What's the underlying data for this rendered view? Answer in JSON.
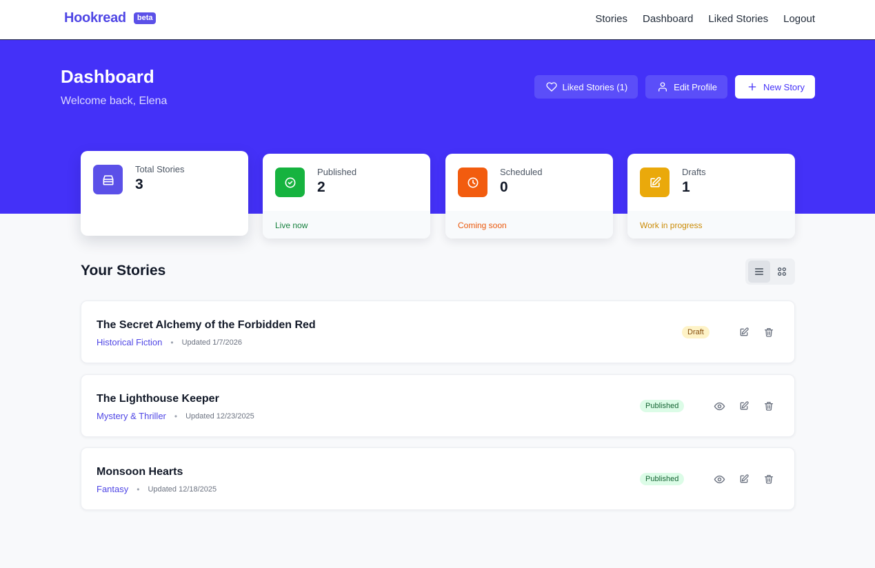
{
  "nav": {
    "brand": "Hookread",
    "beta": "beta",
    "links": [
      "Stories",
      "Dashboard",
      "Liked Stories",
      "Logout"
    ]
  },
  "hero": {
    "title": "Dashboard",
    "subtitle": "Welcome back, Elena",
    "liked_button": "Liked Stories (1)",
    "edit_button": "Edit Profile",
    "new_button": "New Story"
  },
  "stats": [
    {
      "label": "Total Stories",
      "value": "3",
      "footer": "",
      "icon": "inbox-icon",
      "color": "#5b50e8"
    },
    {
      "label": "Published",
      "value": "2",
      "footer": "Live now",
      "icon": "check-circle-icon",
      "color": "#16a34a"
    },
    {
      "label": "Scheduled",
      "value": "0",
      "footer": "Coming soon",
      "icon": "clock-icon",
      "color": "#ea580c"
    },
    {
      "label": "Drafts",
      "value": "1",
      "footer": "Work in progress",
      "icon": "edit-icon",
      "color": "#eab308"
    }
  ],
  "section": {
    "title": "Your Stories"
  },
  "stories": [
    {
      "title": "The Secret Alchemy of the Forbidden Red",
      "genre": "Historical Fiction",
      "updated": "Updated 1/7/2026",
      "status": "Draft"
    },
    {
      "title": "The Lighthouse Keeper",
      "genre": "Mystery & Thriller",
      "updated": "Updated 12/23/2025",
      "status": "Published"
    },
    {
      "title": "Monsoon Hearts",
      "genre": "Fantasy",
      "updated": "Updated 12/18/2025",
      "status": "Published"
    }
  ],
  "colors": {
    "primary": "#4431f8",
    "brand": "#4f46e5",
    "published_foot": "#15803d",
    "scheduled_foot": "#ea580c",
    "drafts_foot": "#ca8a04"
  },
  "separator": "•"
}
